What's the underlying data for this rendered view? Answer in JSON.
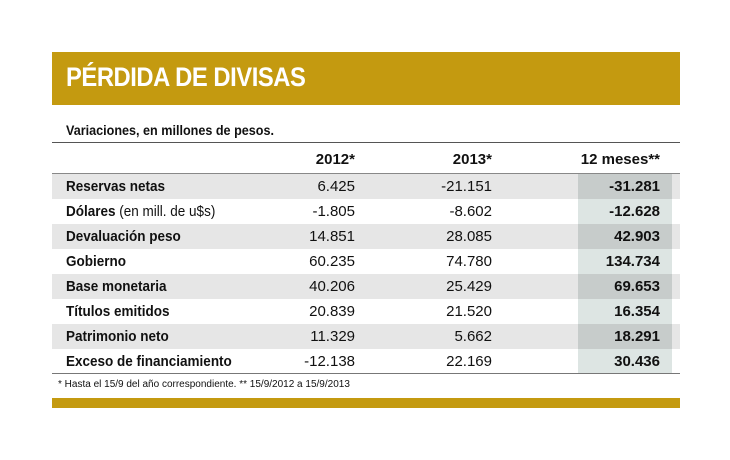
{
  "title": "PÉRDIDA DE DIVISAS",
  "subtitle": "Variaciones, en millones de pesos.",
  "footnote": "* Hasta el 15/9 del año correspondiente. ** 15/9/2012 a 15/9/2013",
  "colors": {
    "accent": "#c49a10",
    "row_shade": "#e6e6e6",
    "highlight_dark": "#c7cccb",
    "highlight_light": "#dde5e3"
  },
  "chart_data": {
    "type": "table",
    "columns": [
      "",
      "2012*",
      "2013*",
      "12 meses**"
    ],
    "rows": [
      {
        "label": "Reservas netas",
        "note": "",
        "values": [
          "6.425",
          "-21.151",
          "-31.281"
        ]
      },
      {
        "label": "Dólares",
        "note": " (en mill. de u$s)",
        "values": [
          "-1.805",
          "-8.602",
          "-12.628"
        ]
      },
      {
        "label": "Devaluación peso",
        "note": "",
        "values": [
          "14.851",
          "28.085",
          "42.903"
        ]
      },
      {
        "label": "Gobierno",
        "note": "",
        "values": [
          "60.235",
          "74.780",
          "134.734"
        ]
      },
      {
        "label": "Base monetaria",
        "note": "",
        "values": [
          "40.206",
          "25.429",
          "69.653"
        ]
      },
      {
        "label": "Títulos emitidos",
        "note": "",
        "values": [
          "20.839",
          "21.520",
          "16.354"
        ]
      },
      {
        "label": "Patrimonio neto",
        "note": "",
        "values": [
          "11.329",
          "5.662",
          "18.291"
        ]
      },
      {
        "label": "Exceso de financiamiento",
        "note": "",
        "values": [
          "-12.138",
          "22.169",
          "30.436"
        ]
      }
    ]
  }
}
